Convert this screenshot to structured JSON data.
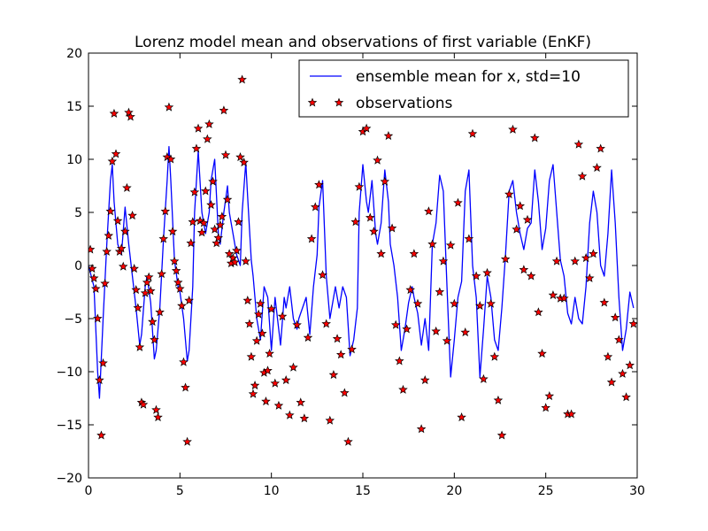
{
  "chart_data": {
    "type": "line",
    "title": "Lorenz model mean and observations of first variable (EnKF)",
    "xlim": [
      0,
      30
    ],
    "ylim": [
      -20,
      20
    ],
    "xticks": [
      0,
      5,
      10,
      15,
      20,
      25,
      30
    ],
    "yticks": [
      -20,
      -15,
      -10,
      -5,
      0,
      5,
      10,
      15,
      20
    ],
    "grid": false,
    "legend_position": "top-right",
    "series": [
      {
        "name": "ensemble mean for x, std=10",
        "kind": "line",
        "color": "#0000ff",
        "x": [
          0.0,
          0.3,
          0.5,
          0.6,
          0.8,
          1.0,
          1.2,
          1.3,
          1.4,
          1.6,
          1.8,
          2.0,
          2.2,
          2.4,
          2.6,
          2.8,
          2.9,
          3.1,
          3.2,
          3.4,
          3.6,
          3.7,
          3.9,
          4.1,
          4.3,
          4.4,
          4.5,
          4.7,
          4.9,
          5.0,
          5.2,
          5.4,
          5.5,
          5.7,
          5.8,
          6.0,
          6.2,
          6.4,
          6.6,
          6.7,
          6.9,
          7.1,
          7.2,
          7.4,
          7.6,
          7.7,
          7.9,
          8.1,
          8.3,
          8.4,
          8.6,
          8.7,
          8.9,
          9.0,
          9.2,
          9.4,
          9.6,
          9.8,
          10.0,
          10.2,
          10.4,
          10.5,
          10.7,
          10.8,
          11.0,
          11.2,
          11.4,
          11.5,
          11.7,
          11.9,
          12.1,
          12.3,
          12.5,
          12.6,
          12.8,
          13.0,
          13.2,
          13.4,
          13.5,
          13.7,
          13.9,
          14.1,
          14.3,
          14.5,
          14.7,
          14.8,
          15.0,
          15.2,
          15.3,
          15.5,
          15.7,
          15.8,
          16.0,
          16.2,
          16.4,
          16.5,
          16.7,
          16.9,
          17.1,
          17.3,
          17.5,
          17.7,
          17.8,
          18.0,
          18.2,
          18.4,
          18.6,
          18.8,
          19.0,
          19.2,
          19.4,
          19.6,
          19.8,
          20.0,
          20.2,
          20.4,
          20.6,
          20.8,
          21.0,
          21.2,
          21.4,
          21.6,
          21.8,
          22.0,
          22.2,
          22.4,
          22.6,
          22.8,
          23.0,
          23.2,
          23.4,
          23.6,
          23.8,
          24.0,
          24.2,
          24.4,
          24.6,
          24.8,
          25.0,
          25.2,
          25.4,
          25.6,
          25.8,
          26.0,
          26.2,
          26.4,
          26.6,
          26.8,
          27.0,
          27.2,
          27.4,
          27.6,
          27.8,
          28.0,
          28.2,
          28.4,
          28.6,
          28.8,
          29.0,
          29.2,
          29.4,
          29.6,
          29.8
        ],
        "y": [
          0.0,
          -2.0,
          -10.0,
          -12.5,
          -5.0,
          2.0,
          8.0,
          9.5,
          6.0,
          2.0,
          1.0,
          5.5,
          2.0,
          -1.0,
          -4.0,
          -7.5,
          -6.5,
          -2.0,
          -1.0,
          -3.5,
          -8.8,
          -8.0,
          -4.0,
          2.5,
          8.0,
          11.2,
          8.0,
          0.5,
          -2.0,
          -2.5,
          -5.0,
          -9.0,
          -8.0,
          -2.0,
          5.0,
          10.8,
          5.0,
          3.0,
          5.0,
          8.0,
          10.0,
          3.0,
          2.0,
          5.0,
          7.5,
          5.0,
          3.0,
          1.0,
          0.0,
          5.0,
          9.7,
          6.5,
          0.5,
          -1.0,
          -5.0,
          -7.0,
          -2.0,
          -3.0,
          -8.0,
          -3.0,
          -6.0,
          -7.5,
          -3.0,
          -4.0,
          -2.0,
          -5.0,
          -6.0,
          -5.0,
          -4.0,
          -3.0,
          -6.5,
          -2.0,
          1.0,
          5.5,
          8.0,
          -1.0,
          -5.0,
          -3.0,
          -2.0,
          -4.0,
          -2.0,
          -3.0,
          -8.5,
          -7.0,
          -4.0,
          5.0,
          9.5,
          6.0,
          5.0,
          8.0,
          3.0,
          2.0,
          4.0,
          9.0,
          6.0,
          2.0,
          0.0,
          -3.0,
          -8.0,
          -6.0,
          -3.5,
          -2.0,
          -3.0,
          -4.5,
          -7.5,
          -5.0,
          -8.0,
          2.0,
          4.0,
          8.5,
          7.0,
          -2.0,
          -10.5,
          -7.0,
          -3.0,
          -1.5,
          7.0,
          9.0,
          0.0,
          -3.0,
          -10.5,
          -6.0,
          -1.0,
          -3.0,
          -7.0,
          -8.0,
          -4.0,
          1.0,
          7.0,
          8.0,
          5.0,
          3.0,
          1.5,
          3.5,
          4.0,
          9.0,
          6.0,
          1.5,
          3.5,
          8.0,
          9.5,
          5.0,
          0.5,
          -1.0,
          -4.5,
          -5.5,
          -3.0,
          -5.0,
          -5.5,
          -2.0,
          4.0,
          7.0,
          5.0,
          0.0,
          -1.0,
          3.0,
          9.0,
          4.0,
          -3.0,
          -8.0,
          -6.0,
          -2.5,
          -4.0
        ]
      },
      {
        "name": "observations",
        "kind": "scatter",
        "color": "#ff0000",
        "x": [
          0.1,
          0.2,
          0.3,
          0.4,
          0.5,
          0.6,
          0.7,
          0.8,
          0.9,
          1.0,
          1.1,
          1.2,
          1.3,
          1.4,
          1.5,
          1.6,
          1.7,
          1.8,
          1.9,
          2.0,
          2.1,
          2.2,
          2.3,
          2.4,
          2.5,
          2.6,
          2.7,
          2.8,
          2.9,
          3.0,
          3.1,
          3.2,
          3.3,
          3.4,
          3.5,
          3.6,
          3.7,
          3.8,
          3.9,
          4.0,
          4.1,
          4.2,
          4.3,
          4.4,
          4.5,
          4.6,
          4.7,
          4.8,
          4.9,
          5.0,
          5.1,
          5.2,
          5.3,
          5.4,
          5.5,
          5.6,
          5.7,
          5.8,
          5.9,
          6.0,
          6.1,
          6.2,
          6.3,
          6.4,
          6.5,
          6.6,
          6.7,
          6.8,
          6.9,
          7.0,
          7.1,
          7.2,
          7.3,
          7.4,
          7.5,
          7.6,
          7.7,
          7.8,
          7.9,
          8.0,
          8.1,
          8.2,
          8.3,
          8.4,
          8.5,
          8.6,
          8.7,
          8.8,
          8.9,
          9.0,
          9.1,
          9.2,
          9.3,
          9.4,
          9.5,
          9.6,
          9.7,
          9.8,
          9.9,
          10.0,
          10.2,
          10.4,
          10.6,
          10.8,
          11.0,
          11.2,
          11.4,
          11.6,
          11.8,
          12.0,
          12.2,
          12.4,
          12.6,
          12.8,
          13.0,
          13.2,
          13.4,
          13.6,
          13.8,
          14.0,
          14.2,
          14.4,
          14.6,
          14.8,
          15.0,
          15.2,
          15.4,
          15.6,
          15.8,
          16.0,
          16.2,
          16.4,
          16.6,
          16.8,
          17.0,
          17.2,
          17.4,
          17.6,
          17.8,
          18.0,
          18.2,
          18.4,
          18.6,
          18.8,
          19.0,
          19.2,
          19.4,
          19.6,
          19.8,
          20.0,
          20.2,
          20.4,
          20.6,
          20.8,
          21.0,
          21.2,
          21.4,
          21.6,
          21.8,
          22.0,
          22.2,
          22.4,
          22.6,
          22.8,
          23.0,
          23.2,
          23.4,
          23.6,
          23.8,
          24.0,
          24.2,
          24.4,
          24.6,
          24.8,
          25.0,
          25.2,
          25.4,
          25.6,
          25.8,
          26.0,
          26.2,
          26.4,
          26.6,
          26.8,
          27.0,
          27.2,
          27.4,
          27.6,
          27.8,
          28.0,
          28.2,
          28.4,
          28.6,
          28.8,
          29.0,
          29.2,
          29.4,
          29.6,
          29.8
        ],
        "y": [
          1.5,
          -0.3,
          -1.2,
          -2.2,
          -5.0,
          -10.8,
          -16.0,
          -9.2,
          -1.7,
          1.3,
          2.8,
          5.1,
          9.8,
          14.3,
          10.5,
          4.2,
          1.3,
          1.6,
          -0.1,
          3.2,
          7.3,
          14.4,
          14.0,
          4.7,
          -0.3,
          -2.3,
          -4.0,
          -7.7,
          -12.9,
          -13.1,
          -2.6,
          -1.6,
          -1.1,
          -2.4,
          -5.3,
          -7.0,
          -13.6,
          -14.3,
          -4.4,
          -0.8,
          2.5,
          5.1,
          10.2,
          14.9,
          10.0,
          3.2,
          0.4,
          -0.5,
          -1.6,
          -2.2,
          -3.8,
          -9.1,
          -11.5,
          -16.6,
          -3.3,
          2.1,
          4.1,
          6.9,
          11.0,
          12.9,
          4.2,
          3.1,
          4.0,
          7.0,
          11.9,
          13.3,
          5.7,
          7.9,
          3.4,
          2.1,
          2.6,
          3.8,
          4.6,
          14.6,
          10.4,
          6.2,
          1.1,
          0.2,
          0.7,
          0.3,
          1.4,
          4.1,
          10.2,
          17.5,
          9.7,
          0.4,
          -3.3,
          -5.5,
          -8.6,
          -12.1,
          -11.3,
          -7.1,
          -4.6,
          -3.6,
          -6.4,
          -10.1,
          -12.8,
          -9.9,
          -8.3,
          -4.1,
          -11.1,
          -13.2,
          -4.8,
          -10.8,
          -14.1,
          -9.6,
          -5.6,
          -12.9,
          -14.4,
          -6.8,
          2.5,
          5.5,
          7.6,
          -0.9,
          -5.5,
          -14.6,
          -10.3,
          -6.9,
          -8.4,
          -12.0,
          -16.6,
          -7.9,
          4.1,
          7.4,
          12.6,
          12.9,
          4.5,
          3.2,
          9.9,
          1.1,
          7.9,
          12.2,
          3.5,
          -5.6,
          -9.0,
          -11.7,
          -6.0,
          -2.3,
          1.1,
          -3.6,
          -15.4,
          -10.8,
          5.1,
          2.0,
          -6.2,
          -2.5,
          0.4,
          -7.1,
          1.9,
          -3.6,
          5.9,
          -14.3,
          -6.3,
          2.5,
          12.4,
          -1.0,
          -3.8,
          -10.7,
          -0.7,
          -3.6,
          -8.6,
          -12.7,
          -16.0,
          0.6,
          6.7,
          12.8,
          3.4,
          5.6,
          -0.4,
          4.3,
          -1.0,
          12.0,
          -4.4,
          -8.3,
          -13.4,
          -12.3,
          -2.8,
          0.4,
          -3.1,
          -3.1,
          -14.0,
          -14.0,
          0.4,
          11.4,
          8.4,
          0.7,
          -1.2,
          1.1,
          9.2,
          11.0,
          -3.5,
          -8.6,
          -11.0,
          -4.9,
          -7.0,
          -10.2,
          -12.4,
          -9.4,
          -5.5
        ]
      }
    ]
  }
}
